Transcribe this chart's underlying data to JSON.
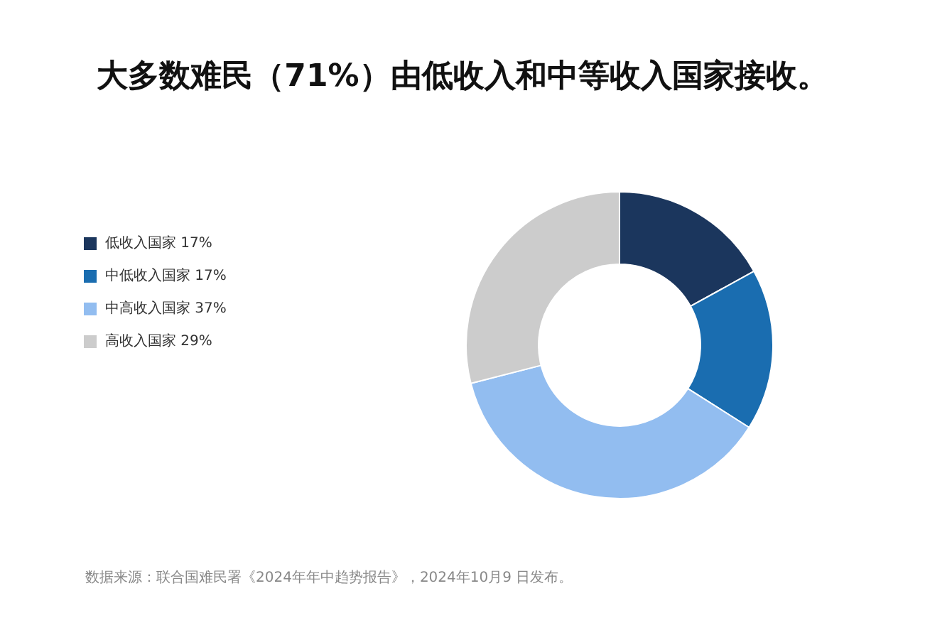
{
  "chart_data": {
    "type": "donut",
    "title": "大多数难民（71%）由低收入和中等收入国家接收。",
    "categories": [
      "低收入国家 17%",
      "中低收入国家 17%",
      "中高收入国家 37%",
      "高收入国家 29%"
    ],
    "values": [
      17,
      17,
      37,
      29
    ],
    "colors": [
      "#1b365d",
      "#1a6db0",
      "#92bdf0",
      "#cccccc"
    ],
    "legend": "left",
    "annotations": [
      "数据来源：联合国难民署《2024年年中趋势报告》，2024年10月9 日发布。"
    ]
  }
}
